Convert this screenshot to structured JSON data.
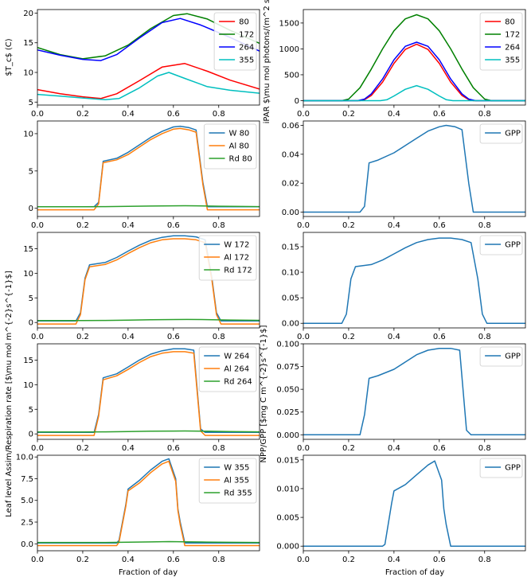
{
  "figure": {
    "shared_xlabel": "Fraction of day",
    "left_ylabel": "Leaf level Assim/Respiration rate [$\\mu mol m^{-2}s^{-1}$]",
    "right_ylabel": "NPP/GPP [$mg C m^{-2}s^{-1}$]"
  },
  "chart_data": [
    {
      "id": "tc",
      "type": "line",
      "ylabel": "$T_c$ (C)",
      "xlim": [
        0,
        0.98
      ],
      "ylim": [
        4.5,
        20.6
      ],
      "xticks": [
        "0.0",
        "0.2",
        "0.4",
        "0.6",
        "0.8"
      ],
      "yticks": [
        5,
        10,
        15,
        20
      ],
      "legend": "top-right",
      "grid": false,
      "series": [
        {
          "name": "80",
          "color": "#ff0000",
          "x": [
            0,
            0.1,
            0.2,
            0.28,
            0.35,
            0.45,
            0.55,
            0.65,
            0.75,
            0.85,
            0.98
          ],
          "y": [
            7.1,
            6.4,
            5.9,
            5.6,
            6.4,
            8.6,
            10.9,
            11.5,
            10.2,
            8.7,
            7.2
          ]
        },
        {
          "name": "172",
          "color": "#008000",
          "x": [
            0,
            0.1,
            0.2,
            0.3,
            0.4,
            0.5,
            0.6,
            0.66,
            0.75,
            0.85,
            0.98
          ],
          "y": [
            14.2,
            13.0,
            12.3,
            12.8,
            14.6,
            17.4,
            19.6,
            19.9,
            19.0,
            17.1,
            14.9
          ]
        },
        {
          "name": "264",
          "color": "#0000ff",
          "x": [
            0,
            0.1,
            0.2,
            0.28,
            0.35,
            0.45,
            0.55,
            0.63,
            0.72,
            0.85,
            0.98
          ],
          "y": [
            13.8,
            12.9,
            12.2,
            12.0,
            13.0,
            15.8,
            18.4,
            19.1,
            18.0,
            15.9,
            13.6
          ]
        },
        {
          "name": "355",
          "color": "#00bfbf",
          "x": [
            0,
            0.1,
            0.2,
            0.3,
            0.36,
            0.45,
            0.53,
            0.58,
            0.65,
            0.75,
            0.85,
            0.98
          ],
          "y": [
            6.3,
            6.0,
            5.7,
            5.4,
            5.6,
            7.4,
            9.4,
            10.0,
            9.0,
            7.6,
            7.0,
            6.5
          ]
        }
      ]
    },
    {
      "id": "ipar",
      "type": "line",
      "ylabel": "iPAR $\\mu mol photons/(m^2 s)$",
      "xlim": [
        0,
        0.98
      ],
      "ylim": [
        -85,
        1760
      ],
      "xticks": [
        "0.0",
        "0.2",
        "0.4",
        "0.6",
        "0.8"
      ],
      "yticks": [
        0,
        500,
        1000,
        1500
      ],
      "legend": "top-right",
      "grid": false,
      "series": [
        {
          "name": "80",
          "color": "#ff0000",
          "x": [
            0,
            0.25,
            0.27,
            0.3,
            0.35,
            0.4,
            0.45,
            0.5,
            0.55,
            0.6,
            0.65,
            0.7,
            0.73,
            0.75,
            0.98
          ],
          "y": [
            0,
            0,
            20,
            100,
            360,
            720,
            990,
            1090,
            990,
            720,
            360,
            100,
            20,
            0,
            0
          ]
        },
        {
          "name": "172",
          "color": "#008000",
          "x": [
            0,
            0.17,
            0.2,
            0.25,
            0.3,
            0.35,
            0.4,
            0.45,
            0.5,
            0.55,
            0.6,
            0.65,
            0.7,
            0.75,
            0.8,
            0.83,
            0.98
          ],
          "y": [
            0,
            0,
            30,
            250,
            610,
            1000,
            1350,
            1580,
            1660,
            1580,
            1350,
            1000,
            610,
            250,
            30,
            0,
            0
          ]
        },
        {
          "name": "264",
          "color": "#0000ff",
          "x": [
            0,
            0.24,
            0.27,
            0.3,
            0.35,
            0.4,
            0.45,
            0.5,
            0.55,
            0.6,
            0.65,
            0.7,
            0.73,
            0.76,
            0.98
          ],
          "y": [
            0,
            0,
            30,
            130,
            420,
            790,
            1050,
            1130,
            1050,
            790,
            420,
            130,
            30,
            0,
            0
          ]
        },
        {
          "name": "355",
          "color": "#00bfbf",
          "x": [
            0,
            0.34,
            0.37,
            0.4,
            0.45,
            0.5,
            0.55,
            0.6,
            0.63,
            0.66,
            0.98
          ],
          "y": [
            0,
            0,
            20,
            90,
            220,
            290,
            220,
            90,
            20,
            0,
            0
          ]
        }
      ]
    },
    {
      "id": "a80",
      "type": "line",
      "xlim": [
        0,
        0.98
      ],
      "ylim": [
        -1.1,
        11.7
      ],
      "xticks": [
        "0.0",
        "0.2",
        "0.4",
        "0.6",
        "0.8"
      ],
      "yticks": [
        0,
        5,
        10
      ],
      "legend": "top-right",
      "grid": false,
      "series": [
        {
          "name": "W 80",
          "color": "#1f77b4",
          "x": [
            0,
            0.25,
            0.27,
            0.29,
            0.35,
            0.4,
            0.45,
            0.5,
            0.55,
            0.6,
            0.63,
            0.67,
            0.7,
            0.73,
            0.75,
            0.98
          ],
          "y": [
            0.2,
            0.2,
            0.8,
            6.3,
            6.7,
            7.5,
            8.5,
            9.5,
            10.3,
            10.9,
            11.0,
            10.8,
            10.5,
            3.5,
            0.2,
            0.2
          ]
        },
        {
          "name": "Al 80",
          "color": "#ff7f0e",
          "x": [
            0,
            0.25,
            0.27,
            0.29,
            0.35,
            0.4,
            0.45,
            0.5,
            0.55,
            0.6,
            0.63,
            0.67,
            0.7,
            0.73,
            0.75,
            0.98
          ],
          "y": [
            -0.2,
            -0.2,
            0.6,
            6.1,
            6.5,
            7.2,
            8.2,
            9.2,
            10.0,
            10.6,
            10.7,
            10.5,
            10.2,
            3.2,
            -0.2,
            -0.2
          ]
        },
        {
          "name": "Rd 80",
          "color": "#2ca02c",
          "x": [
            0,
            0.2,
            0.3,
            0.4,
            0.5,
            0.6,
            0.65,
            0.7,
            0.8,
            0.9,
            0.98
          ],
          "y": [
            0.2,
            0.2,
            0.22,
            0.26,
            0.3,
            0.33,
            0.34,
            0.33,
            0.28,
            0.24,
            0.22
          ]
        }
      ]
    },
    {
      "id": "g80",
      "type": "line",
      "xlim": [
        0,
        0.98
      ],
      "ylim": [
        -0.003,
        0.063
      ],
      "xticks": [
        "0.0",
        "0.2",
        "0.4",
        "0.6",
        "0.8"
      ],
      "yticks": [
        "0.00",
        "0.02",
        "0.04",
        "0.06"
      ],
      "legend": "top-right",
      "grid": false,
      "series": [
        {
          "name": "GPP",
          "color": "#1f77b4",
          "x": [
            0,
            0.25,
            0.27,
            0.29,
            0.33,
            0.4,
            0.45,
            0.5,
            0.55,
            0.6,
            0.63,
            0.67,
            0.7,
            0.73,
            0.75,
            0.98
          ],
          "y": [
            0,
            0,
            0.004,
            0.034,
            0.036,
            0.041,
            0.046,
            0.051,
            0.056,
            0.059,
            0.06,
            0.059,
            0.057,
            0.02,
            0,
            0
          ]
        }
      ]
    },
    {
      "id": "a172",
      "type": "line",
      "xlim": [
        0,
        0.98
      ],
      "ylim": [
        -1.1,
        18.3
      ],
      "xticks": [
        "0.0",
        "0.2",
        "0.4",
        "0.6",
        "0.8"
      ],
      "yticks": [
        0,
        5,
        10,
        15
      ],
      "legend": "top-right",
      "grid": false,
      "series": [
        {
          "name": "W 172",
          "color": "#1f77b4",
          "x": [
            0,
            0.17,
            0.19,
            0.21,
            0.23,
            0.3,
            0.35,
            0.4,
            0.45,
            0.5,
            0.55,
            0.6,
            0.65,
            0.7,
            0.74,
            0.77,
            0.79,
            0.81,
            0.98
          ],
          "y": [
            0.3,
            0.3,
            2.0,
            9.0,
            11.7,
            12.2,
            13.2,
            14.5,
            15.7,
            16.7,
            17.3,
            17.6,
            17.6,
            17.4,
            16.8,
            9.0,
            2.0,
            0.3,
            0.3
          ]
        },
        {
          "name": "Al 172",
          "color": "#ff7f0e",
          "x": [
            0,
            0.17,
            0.19,
            0.21,
            0.23,
            0.3,
            0.35,
            0.4,
            0.45,
            0.5,
            0.55,
            0.6,
            0.65,
            0.7,
            0.74,
            0.77,
            0.79,
            0.81,
            0.98
          ],
          "y": [
            -0.3,
            -0.3,
            1.6,
            8.7,
            11.3,
            11.8,
            12.7,
            14.0,
            15.2,
            16.2,
            16.8,
            17.0,
            17.0,
            16.8,
            16.2,
            8.6,
            1.6,
            -0.3,
            -0.3
          ]
        },
        {
          "name": "Rd 172",
          "color": "#2ca02c",
          "x": [
            0,
            0.2,
            0.3,
            0.4,
            0.5,
            0.6,
            0.66,
            0.75,
            0.85,
            0.98
          ],
          "y": [
            0.4,
            0.4,
            0.42,
            0.48,
            0.55,
            0.6,
            0.62,
            0.58,
            0.5,
            0.44
          ]
        }
      ]
    },
    {
      "id": "g172",
      "type": "line",
      "xlim": [
        0,
        0.98
      ],
      "ylim": [
        -0.009,
        0.178
      ],
      "xticks": [
        "0.0",
        "0.2",
        "0.4",
        "0.6",
        "0.8"
      ],
      "yticks": [
        "0.00",
        "0.05",
        "0.10",
        "0.15"
      ],
      "legend": "top-right",
      "grid": false,
      "series": [
        {
          "name": "GPP",
          "color": "#1f77b4",
          "x": [
            0,
            0.17,
            0.19,
            0.21,
            0.23,
            0.3,
            0.35,
            0.4,
            0.45,
            0.5,
            0.55,
            0.6,
            0.65,
            0.7,
            0.74,
            0.77,
            0.79,
            0.81,
            0.98
          ],
          "y": [
            0,
            0,
            0.018,
            0.087,
            0.111,
            0.115,
            0.124,
            0.136,
            0.148,
            0.158,
            0.164,
            0.167,
            0.167,
            0.164,
            0.158,
            0.087,
            0.018,
            0,
            0
          ]
        }
      ]
    },
    {
      "id": "a264",
      "type": "line",
      "xlim": [
        0,
        0.98
      ],
      "ylim": [
        -1.1,
        18.3
      ],
      "xticks": [
        "0.0",
        "0.2",
        "0.4",
        "0.6",
        "0.8"
      ],
      "yticks": [
        0,
        5,
        10,
        15
      ],
      "legend": "top-right",
      "grid": false,
      "series": [
        {
          "name": "W 264",
          "color": "#1f77b4",
          "x": [
            0,
            0.25,
            0.27,
            0.29,
            0.35,
            0.4,
            0.45,
            0.5,
            0.55,
            0.6,
            0.65,
            0.69,
            0.72,
            0.74,
            0.98
          ],
          "y": [
            0.3,
            0.3,
            4.0,
            11.4,
            12.2,
            13.6,
            15.0,
            16.2,
            16.9,
            17.3,
            17.3,
            17.0,
            1.0,
            0.3,
            0.3
          ]
        },
        {
          "name": "Al 264",
          "color": "#ff7f0e",
          "x": [
            0,
            0.25,
            0.27,
            0.29,
            0.35,
            0.4,
            0.45,
            0.5,
            0.55,
            0.6,
            0.65,
            0.69,
            0.72,
            0.74,
            0.98
          ],
          "y": [
            -0.3,
            -0.3,
            3.6,
            11.0,
            11.8,
            13.1,
            14.5,
            15.7,
            16.4,
            16.7,
            16.7,
            16.4,
            0.6,
            -0.3,
            -0.3
          ]
        },
        {
          "name": "Rd 264",
          "color": "#2ca02c",
          "x": [
            0,
            0.2,
            0.3,
            0.4,
            0.5,
            0.6,
            0.65,
            0.75,
            0.85,
            0.98
          ],
          "y": [
            0.4,
            0.4,
            0.42,
            0.48,
            0.55,
            0.58,
            0.59,
            0.55,
            0.47,
            0.42
          ]
        }
      ]
    },
    {
      "id": "g264",
      "type": "line",
      "xlim": [
        0,
        0.98
      ],
      "ylim": [
        -0.005,
        0.1
      ],
      "xticks": [
        "0.0",
        "0.2",
        "0.4",
        "0.6",
        "0.8"
      ],
      "yticks": [
        "0.000",
        "0.025",
        "0.050",
        "0.075",
        "0.100"
      ],
      "legend": "top-right",
      "grid": false,
      "series": [
        {
          "name": "GPP",
          "color": "#1f77b4",
          "x": [
            0,
            0.25,
            0.27,
            0.29,
            0.33,
            0.4,
            0.45,
            0.5,
            0.55,
            0.6,
            0.65,
            0.69,
            0.72,
            0.74,
            0.98
          ],
          "y": [
            0,
            0,
            0.022,
            0.062,
            0.065,
            0.072,
            0.08,
            0.088,
            0.093,
            0.095,
            0.095,
            0.093,
            0.005,
            0,
            0
          ]
        }
      ]
    },
    {
      "id": "a355",
      "type": "line",
      "xlim": [
        0,
        0.98
      ],
      "ylim": [
        -0.8,
        10.2
      ],
      "xticks": [
        "0.0",
        "0.2",
        "0.4",
        "0.6",
        "0.8"
      ],
      "yticks": [
        "0.0",
        "2.5",
        "5.0",
        "7.5",
        "10.0"
      ],
      "legend": "top-right",
      "grid": false,
      "series": [
        {
          "name": "W 355",
          "color": "#1f77b4",
          "x": [
            0,
            0.35,
            0.36,
            0.39,
            0.4,
            0.45,
            0.5,
            0.55,
            0.58,
            0.61,
            0.62,
            0.63,
            0.65,
            0.98
          ],
          "y": [
            0.1,
            0.1,
            0.4,
            4.5,
            6.3,
            7.3,
            8.5,
            9.5,
            9.8,
            7.5,
            4.0,
            2.5,
            0.1,
            0.1
          ]
        },
        {
          "name": "Al 355",
          "color": "#ff7f0e",
          "x": [
            0,
            0.35,
            0.36,
            0.39,
            0.4,
            0.45,
            0.5,
            0.55,
            0.58,
            0.61,
            0.62,
            0.63,
            0.65,
            0.98
          ],
          "y": [
            -0.2,
            -0.2,
            0.2,
            4.3,
            6.1,
            7.0,
            8.2,
            9.2,
            9.5,
            7.2,
            3.8,
            2.2,
            -0.2,
            -0.2
          ]
        },
        {
          "name": "Rd 355",
          "color": "#2ca02c",
          "x": [
            0,
            0.3,
            0.4,
            0.5,
            0.58,
            0.65,
            0.75,
            0.85,
            0.98
          ],
          "y": [
            0.15,
            0.15,
            0.18,
            0.22,
            0.25,
            0.24,
            0.2,
            0.17,
            0.15
          ]
        }
      ]
    },
    {
      "id": "g355",
      "type": "line",
      "xlim": [
        0,
        0.98
      ],
      "ylim": [
        -0.0008,
        0.0158
      ],
      "xticks": [
        "0.0",
        "0.2",
        "0.4",
        "0.6",
        "0.8"
      ],
      "yticks": [
        "0.000",
        "0.005",
        "0.010",
        "0.015"
      ],
      "legend": "top-right",
      "grid": false,
      "series": [
        {
          "name": "GPP",
          "color": "#1f77b4",
          "x": [
            0,
            0.35,
            0.36,
            0.39,
            0.4,
            0.45,
            0.5,
            0.55,
            0.58,
            0.61,
            0.62,
            0.63,
            0.65,
            0.98
          ],
          "y": [
            0,
            0,
            0.0003,
            0.0075,
            0.0096,
            0.0107,
            0.0124,
            0.0141,
            0.0148,
            0.0115,
            0.0065,
            0.0038,
            0,
            0
          ]
        }
      ]
    }
  ]
}
